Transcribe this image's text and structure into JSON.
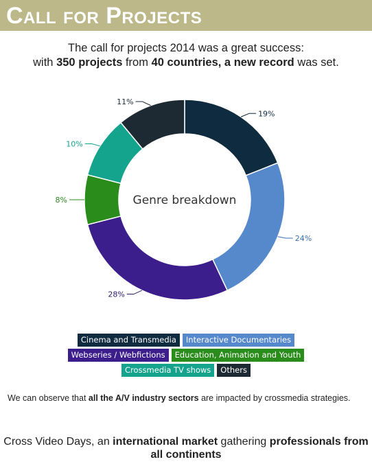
{
  "header": {
    "title": "Call for Projects",
    "bg_color": "#bcb88a"
  },
  "intro": {
    "line1": "The call for projects 2014 was a great success:",
    "line2_a": "with ",
    "line2_b": "350 projects",
    "line2_c": " from ",
    "line2_d": "40 countries, a new record",
    "line2_e": " was set."
  },
  "chart_data": {
    "type": "pie",
    "donut": true,
    "center_label": "Genre breakdown",
    "categories": [
      "Cinema and Transmedia",
      "Interactive Documentaries",
      "Webseries / Webfictions",
      "Education, Animation and Youth",
      "Crossmedia TV shows",
      "Others"
    ],
    "values": [
      19,
      24,
      28,
      8,
      10,
      11
    ],
    "value_labels": [
      "19%",
      "24%",
      "28%",
      "8%",
      "10%",
      "11%"
    ],
    "colors": [
      "#0f2b40",
      "#5689cc",
      "#3b1d8c",
      "#2a8c1b",
      "#14a48e",
      "#1e2a33"
    ],
    "label_colors": [
      "#0f2b40",
      "#3a6fb3",
      "#2e1a6e",
      "#2a8c1b",
      "#14a48e",
      "#1e2a33"
    ]
  },
  "legend": {
    "rows": [
      [
        0,
        1
      ],
      [
        2,
        3
      ],
      [
        4,
        5
      ]
    ]
  },
  "observation": {
    "a": "We can observe that ",
    "b": "all the A/V industry sectors",
    "c": " are impacted by crossmedia strategies."
  },
  "footer": {
    "a": "Cross Video Days, an ",
    "b": "international market",
    "c": " gathering ",
    "d": "professionals from all continents"
  }
}
